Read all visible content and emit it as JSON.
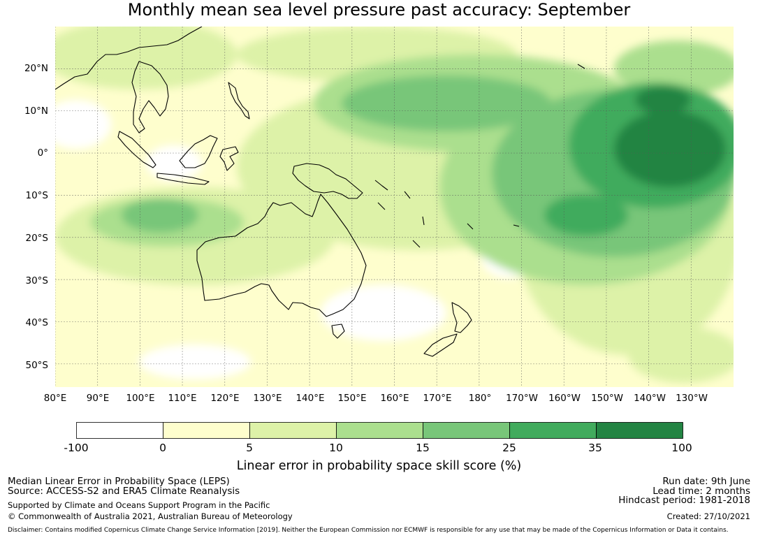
{
  "title": "Monthly mean sea level pressure past accuracy: September",
  "map": {
    "lat_ticks": [
      "20°N",
      "10°N",
      "0°",
      "10°S",
      "20°S",
      "30°S",
      "40°S",
      "50°S"
    ],
    "lon_ticks": [
      "80°E",
      "90°E",
      "100°E",
      "110°E",
      "120°E",
      "130°E",
      "140°E",
      "150°E",
      "160°E",
      "170°E",
      "180°",
      "170°W",
      "160°W",
      "150°W",
      "140°W",
      "130°W"
    ],
    "lon_range": [
      80,
      240
    ],
    "lat_range": [
      -55.5,
      30
    ]
  },
  "colorbar": {
    "ticks": [
      "-100",
      "0",
      "5",
      "10",
      "15",
      "25",
      "35",
      "100"
    ],
    "colors": [
      "#ffffff",
      "#fefecd",
      "#ddf2a8",
      "#abdf8e",
      "#78c679",
      "#41ab5d",
      "#238443"
    ],
    "label": "Linear error in probability space skill score (%)"
  },
  "footer": {
    "line1": "Median Linear Error in Probability Space (LEPS)",
    "line2": "Source: ACCESS-S2 and ERA5 Climate Reanalysis",
    "line3": "Supported by Climate and Oceans Support Program in the Pacific",
    "line4": "© Commonwealth of Australia 2021, Australian Bureau of Meteorology",
    "run_date": "Run date: 9th June",
    "lead_time": "Lead time: 2 months",
    "hindcast": "Hindcast period: 1981-2018",
    "created": "Created: 27/10/2021",
    "disclaimer": "Disclaimer: Contains modified Copernicus Climate Change Service Information [2019]. Neither the European Commission nor ECMWF is responsible for any use that may be made of the Copernicus Information or Data it contains."
  }
}
